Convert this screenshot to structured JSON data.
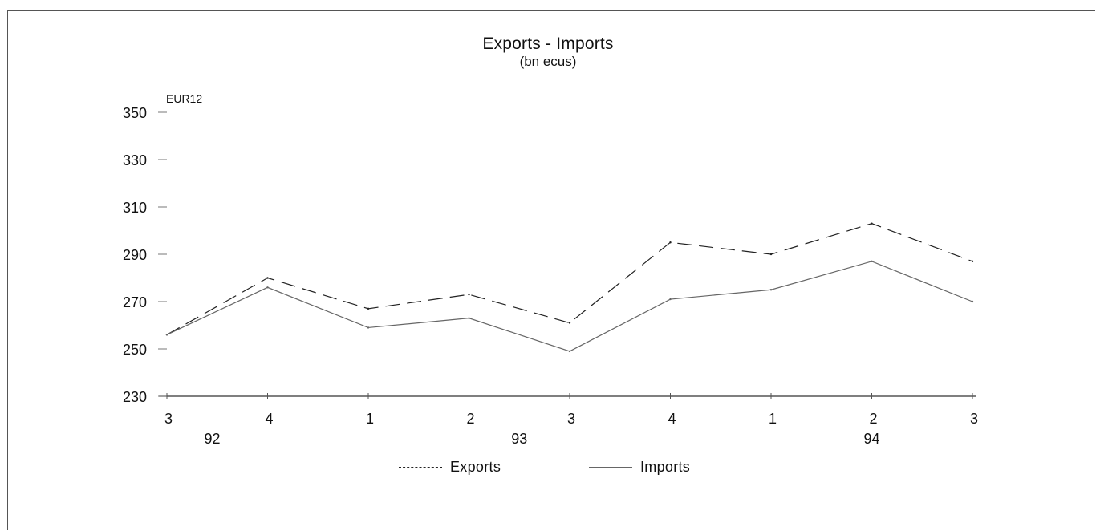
{
  "chart_data": {
    "type": "line",
    "title": "Exports - Imports",
    "subtitle": "(bn ecus)",
    "region_label": "EUR12",
    "xlabel": "",
    "ylabel": "",
    "categories": [
      "3",
      "4",
      "1",
      "2",
      "3",
      "4",
      "1",
      "2",
      "3"
    ],
    "year_labels": [
      {
        "label": "92",
        "between": [
          0,
          1
        ]
      },
      {
        "label": "93",
        "at": 3.5
      },
      {
        "label": "94",
        "at": 7
      }
    ],
    "ylim": [
      230,
      350
    ],
    "yticks": [
      "230",
      "250",
      "270",
      "290",
      "310",
      "330",
      "350"
    ],
    "grid": false,
    "legend": "bottom-center",
    "series": [
      {
        "name": "Exports",
        "values": [
          256,
          280,
          267,
          273,
          261,
          295,
          290,
          303,
          287
        ],
        "style": "dashed",
        "color": "#222222"
      },
      {
        "name": "Imports",
        "values": [
          256,
          276,
          259,
          263,
          249,
          271,
          275,
          287,
          270
        ],
        "style": "solid",
        "color": "#666666"
      }
    ]
  }
}
